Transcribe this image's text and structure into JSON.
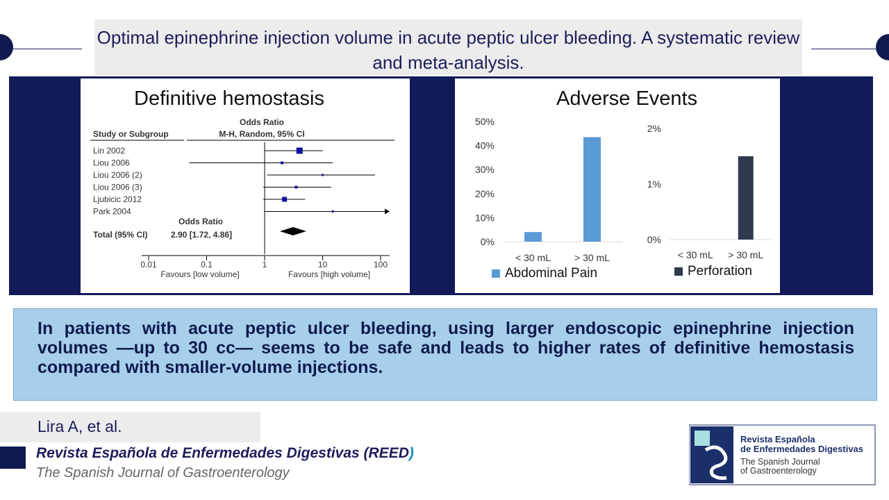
{
  "title": "Optimal epinephrine injection volume in acute peptic ulcer bleeding. A systematic review and meta-analysis.",
  "forest_plot": {
    "title": "Definitive hemostasis",
    "header_measure": "Odds Ratio",
    "header_method": "M-H, Random, 95% CI",
    "column_study": "Study or Subgroup",
    "studies": [
      "Lin 2002",
      "Liou 2006",
      "Liou 2006 (2)",
      "Liou 2006 (3)",
      "Ljubicic 2012",
      "Park 2004"
    ],
    "total_header": "Odds Ratio",
    "total_label": "Total (95% CI)",
    "total_value": "2.90 [1.72, 4.86]",
    "axis_ticks": [
      "0.01",
      "0.1",
      "1",
      "10",
      "100"
    ],
    "favours_left": "Favours [low volume]",
    "favours_right": "Favours [high volume]"
  },
  "adverse_events": {
    "title": "Adverse Events",
    "charts": [
      {
        "type": "bar",
        "categories": [
          "< 30 mL",
          "> 30 mL"
        ],
        "yticks": [
          "50%",
          "40%",
          "30%",
          "20%",
          "10%",
          "0%"
        ],
        "ylim": [
          0,
          50
        ],
        "series": [
          {
            "name": "Abdominal Pain",
            "values": [
              4,
              43.5
            ],
            "color": "#5b9bd5"
          }
        ]
      },
      {
        "type": "bar",
        "categories": [
          "< 30 mL",
          "> 30 mL"
        ],
        "yticks": [
          "2%",
          "1%",
          "0%"
        ],
        "ylim": [
          0,
          2
        ],
        "series": [
          {
            "name": "Perforation",
            "values": [
              0,
              1.5
            ],
            "color": "#2e3a4d"
          }
        ]
      }
    ]
  },
  "conclusion": "In patients with acute peptic ulcer bleeding, using larger endoscopic epinephrine injection volumes —up to 30 cc— seems to be safe and leads to higher rates of definitive hemostasis compared with smaller-volume injections.",
  "author": "Lira A, et al.",
  "journal": {
    "name": "Revista Española de Enfermedades Digestivas (REED",
    "name_close": ")",
    "subtitle": "The Spanish Journal of Gastroenterology"
  },
  "logo": {
    "line1": "Revista Española",
    "line2": "de Enfermedades Digestivas",
    "line3": "The Spanish Journal",
    "line4": "of Gastroenterology"
  }
}
